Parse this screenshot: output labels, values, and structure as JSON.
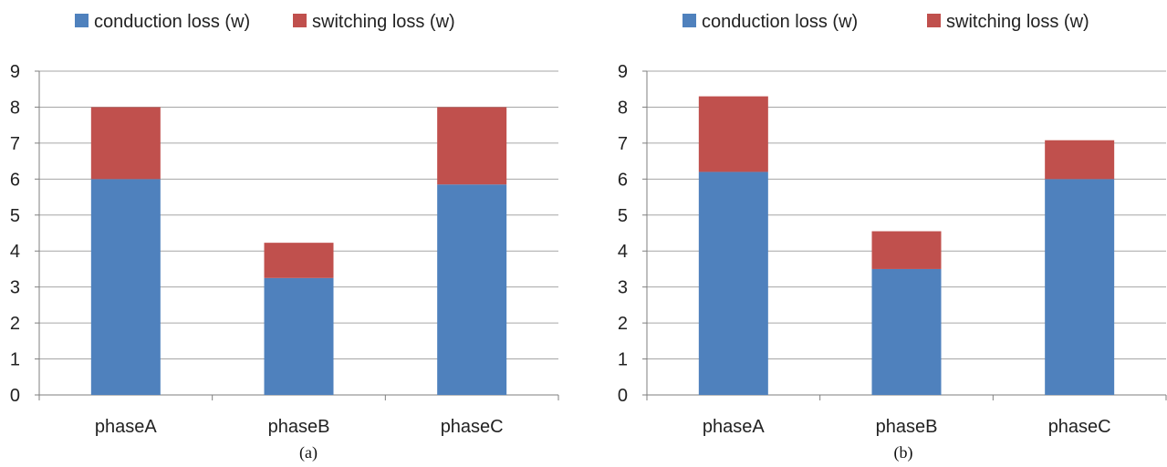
{
  "chart_data": [
    {
      "type": "bar",
      "stacked": true,
      "caption": "(a)",
      "categories": [
        "phaseA",
        "phaseB",
        "phaseC"
      ],
      "series": [
        {
          "name": "conduction loss (w)",
          "values": [
            6.0,
            3.25,
            5.85
          ],
          "color": "#4F81BD"
        },
        {
          "name": "switching loss (w)",
          "values": [
            2.0,
            0.98,
            2.15
          ],
          "color": "#C0504D"
        }
      ],
      "ylim": [
        0,
        9
      ],
      "yticks": [
        0,
        1,
        2,
        3,
        4,
        5,
        6,
        7,
        8,
        9
      ],
      "grid": true,
      "legend": "top"
    },
    {
      "type": "bar",
      "stacked": true,
      "caption": "(b)",
      "categories": [
        "phaseA",
        "phaseB",
        "phaseC"
      ],
      "series": [
        {
          "name": "conduction loss (w)",
          "values": [
            6.2,
            3.5,
            6.0
          ],
          "color": "#4F81BD"
        },
        {
          "name": "switching loss (w)",
          "values": [
            2.1,
            1.05,
            1.08
          ],
          "color": "#C0504D"
        }
      ],
      "ylim": [
        0,
        9
      ],
      "yticks": [
        0,
        1,
        2,
        3,
        4,
        5,
        6,
        7,
        8,
        9
      ],
      "grid": true,
      "legend": "top"
    }
  ]
}
